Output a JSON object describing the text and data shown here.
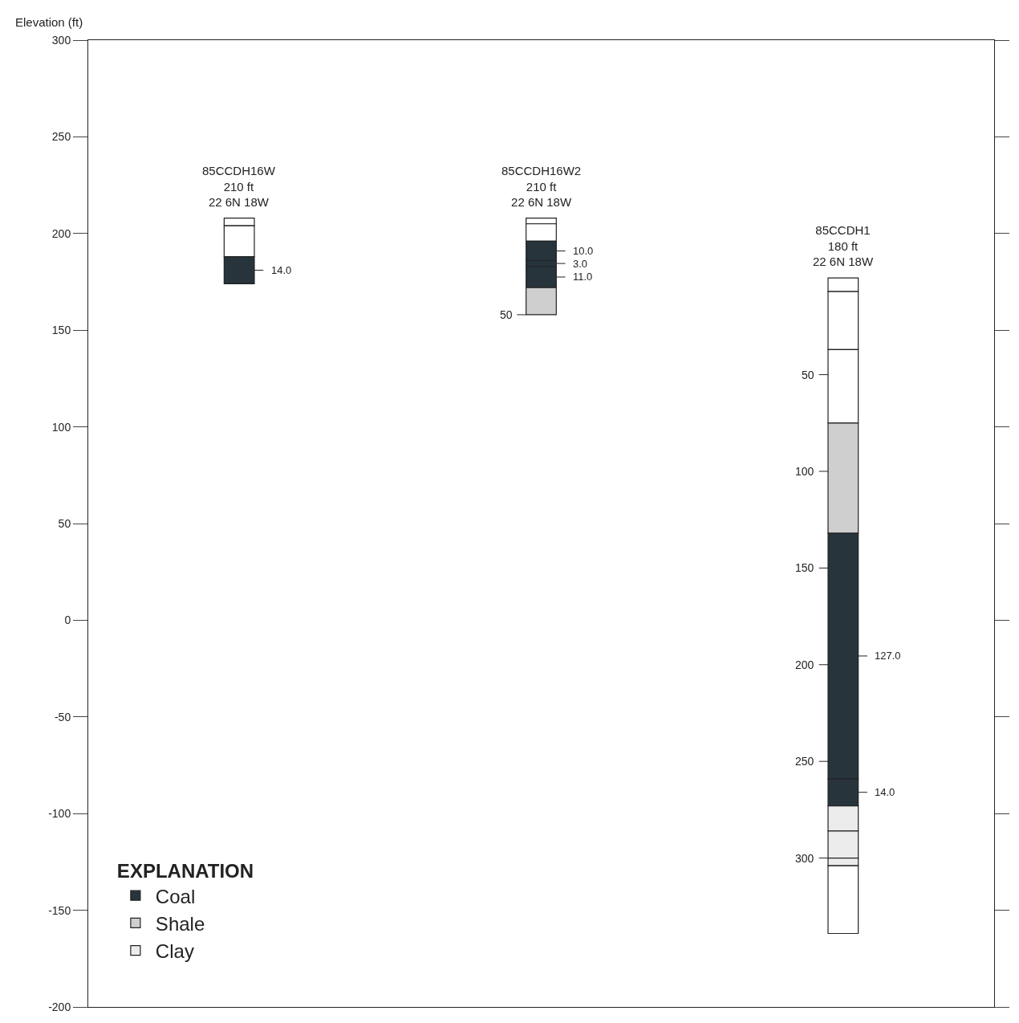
{
  "chart_data": {
    "type": "bar",
    "ylabel": "Elevation (ft)",
    "legend_title": "EXPLANATION",
    "legend": "bottom left",
    "categories": [
      "85CCDH16W\n210 ft\n22 6N 18W",
      "85CCDH16W2\n210 ft\n22 6N 18W",
      "85CCDH1\n180 ft\n22 6N 18W"
    ],
    "ylim": [
      -200,
      300
    ],
    "yticks": [
      -200,
      -150,
      -100,
      -50,
      0,
      50,
      100,
      150,
      200,
      250,
      300
    ],
    "series": [
      {
        "color": "#ffffff",
        "values": [
          4,
          null,
          null
        ],
        "base": [
          204,
          null,
          null
        ]
      },
      {
        "color": "#ffffff",
        "values": [
          16,
          null,
          null
        ],
        "base": [
          188,
          null,
          null
        ]
      },
      {
        "name": "Coal",
        "color": "#27343c",
        "values": [
          14,
          null,
          null
        ],
        "base": [
          174,
          null,
          null
        ],
        "value_labels": [
          "14.0",
          null,
          null
        ]
      },
      {
        "color": "#ffffff",
        "values": [
          null,
          3,
          null
        ],
        "base": [
          null,
          205,
          null
        ]
      },
      {
        "color": "#ffffff",
        "values": [
          null,
          9,
          null
        ],
        "base": [
          null,
          196,
          null
        ]
      },
      {
        "color": "#27343c",
        "values": [
          null,
          10,
          null
        ],
        "base": [
          null,
          186,
          null
        ],
        "value_labels": [
          null,
          "10.0",
          null
        ]
      },
      {
        "color": "#27343c",
        "values": [
          null,
          3,
          null
        ],
        "base": [
          null,
          183,
          null
        ],
        "value_labels": [
          null,
          "3.0",
          null
        ]
      },
      {
        "color": "#27343c",
        "values": [
          null,
          11,
          null
        ],
        "base": [
          null,
          172,
          null
        ],
        "value_labels": [
          null,
          "11.0",
          null
        ]
      },
      {
        "name": "Shale",
        "color": "#cfcfcf",
        "values": [
          null,
          14,
          null
        ],
        "base": [
          null,
          158,
          null
        ]
      },
      {
        "color": "#ffffff",
        "values": [
          null,
          null,
          7
        ],
        "base": [
          null,
          null,
          170
        ]
      },
      {
        "color": "#ffffff",
        "values": [
          null,
          null,
          30
        ],
        "base": [
          null,
          null,
          140
        ]
      },
      {
        "color": "#ffffff",
        "values": [
          null,
          null,
          38
        ],
        "base": [
          null,
          null,
          102
        ]
      },
      {
        "color": "#cfcfcf",
        "values": [
          null,
          null,
          57
        ],
        "base": [
          null,
          null,
          45
        ]
      },
      {
        "color": "#27343c",
        "values": [
          null,
          null,
          127
        ],
        "base": [
          null,
          null,
          -82
        ],
        "value_labels": [
          null,
          null,
          "127.0"
        ]
      },
      {
        "color": "#27343c",
        "values": [
          null,
          null,
          14
        ],
        "base": [
          null,
          null,
          -96
        ],
        "value_labels": [
          null,
          null,
          "14.0"
        ]
      },
      {
        "name": "Clay",
        "color": "#ececec",
        "values": [
          null,
          null,
          13
        ],
        "base": [
          null,
          null,
          -109
        ]
      },
      {
        "color": "#ececec",
        "values": [
          null,
          null,
          14
        ],
        "base": [
          null,
          null,
          -123
        ]
      },
      {
        "color": "#ececec",
        "values": [
          null,
          null,
          4
        ],
        "base": [
          null,
          null,
          -127
        ]
      },
      {
        "color": "#ffffff",
        "values": [
          null,
          null,
          35
        ],
        "base": [
          null,
          null,
          -162
        ]
      }
    ],
    "annotations": [
      {
        "text": "50",
        "x": "85CCDH16W2\n210 ft\n22 6N 18W",
        "y": 158
      },
      "50",
      "100",
      "150",
      "200",
      "250",
      {
        "text": "300",
        "x": "85CCDH1\n180 ft\n22 6N 18W",
        "y": -123
      }
    ]
  }
}
